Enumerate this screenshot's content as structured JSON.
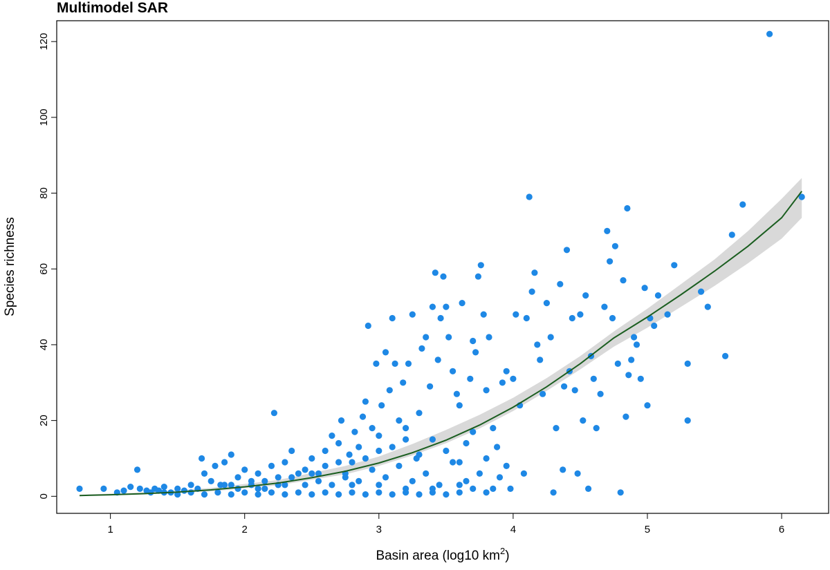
{
  "chart_data": {
    "type": "scatter",
    "title": "Multimodel SAR",
    "xlabel": {
      "text": "Basin area (log10 km",
      "sup": "2",
      "suffix": ")"
    },
    "ylabel": "Species richness",
    "xlim": [
      0.6,
      6.35
    ],
    "ylim": [
      -4.5,
      125.5
    ],
    "x_ticks": [
      1,
      2,
      3,
      4,
      5,
      6
    ],
    "y_ticks": [
      0,
      20,
      40,
      60,
      80,
      100,
      120
    ],
    "grid": false,
    "legend": "none",
    "colors": {
      "points": "#1E88E5",
      "fit_line": "#1B5E20",
      "ci_band": "#D9D9D9",
      "axes": "#000000"
    },
    "points": [
      [
        0.77,
        2
      ],
      [
        0.95,
        2
      ],
      [
        1.05,
        1
      ],
      [
        1.1,
        1.5
      ],
      [
        1.15,
        2.5
      ],
      [
        1.2,
        7
      ],
      [
        1.22,
        2
      ],
      [
        1.27,
        1.5
      ],
      [
        1.3,
        1
      ],
      [
        1.33,
        2
      ],
      [
        1.36,
        1.5
      ],
      [
        1.4,
        2.5
      ],
      [
        1.45,
        1
      ],
      [
        1.5,
        2
      ],
      [
        1.55,
        1.5
      ],
      [
        1.6,
        3
      ],
      [
        1.65,
        2
      ],
      [
        1.68,
        10
      ],
      [
        1.7,
        6
      ],
      [
        1.75,
        4
      ],
      [
        1.78,
        8
      ],
      [
        1.82,
        3
      ],
      [
        1.85,
        9
      ],
      [
        1.9,
        11
      ],
      [
        1.95,
        5
      ],
      [
        2.0,
        7
      ],
      [
        2.05,
        3
      ],
      [
        2.1,
        6
      ],
      [
        2.15,
        4
      ],
      [
        2.2,
        8
      ],
      [
        2.22,
        22
      ],
      [
        2.25,
        5
      ],
      [
        2.3,
        9
      ],
      [
        2.35,
        12
      ],
      [
        2.4,
        6
      ],
      [
        2.45,
        7
      ],
      [
        2.5,
        10
      ],
      [
        2.55,
        4
      ],
      [
        2.6,
        8
      ],
      [
        2.65,
        16
      ],
      [
        2.7,
        14
      ],
      [
        2.72,
        20
      ],
      [
        2.75,
        6
      ],
      [
        2.78,
        11
      ],
      [
        2.8,
        9
      ],
      [
        2.82,
        17
      ],
      [
        2.85,
        13
      ],
      [
        2.88,
        21
      ],
      [
        2.9,
        25
      ],
      [
        2.92,
        45
      ],
      [
        2.95,
        18
      ],
      [
        2.98,
        35
      ],
      [
        3.0,
        12
      ],
      [
        3.02,
        24
      ],
      [
        3.05,
        38
      ],
      [
        3.08,
        28
      ],
      [
        3.1,
        47
      ],
      [
        3.12,
        35
      ],
      [
        3.15,
        20
      ],
      [
        3.18,
        30
      ],
      [
        3.2,
        15
      ],
      [
        3.22,
        35
      ],
      [
        3.25,
        48
      ],
      [
        3.28,
        10
      ],
      [
        3.3,
        22
      ],
      [
        3.32,
        39
      ],
      [
        3.35,
        42
      ],
      [
        3.38,
        29
      ],
      [
        3.4,
        50
      ],
      [
        3.42,
        59
      ],
      [
        3.44,
        36
      ],
      [
        3.46,
        47
      ],
      [
        3.48,
        58
      ],
      [
        3.5,
        50
      ],
      [
        3.52,
        42
      ],
      [
        3.55,
        33
      ],
      [
        3.58,
        27
      ],
      [
        3.6,
        24
      ],
      [
        3.62,
        51
      ],
      [
        3.65,
        14
      ],
      [
        3.68,
        31
      ],
      [
        3.7,
        41
      ],
      [
        3.72,
        38
      ],
      [
        3.74,
        58
      ],
      [
        3.76,
        61
      ],
      [
        3.78,
        48
      ],
      [
        3.8,
        28
      ],
      [
        3.82,
        42
      ],
      [
        3.85,
        18
      ],
      [
        3.88,
        13
      ],
      [
        3.9,
        5
      ],
      [
        3.92,
        30
      ],
      [
        3.95,
        33
      ],
      [
        3.98,
        2
      ],
      [
        4.0,
        31
      ],
      [
        4.02,
        48
      ],
      [
        4.05,
        24
      ],
      [
        4.08,
        6
      ],
      [
        4.1,
        47
      ],
      [
        4.12,
        79
      ],
      [
        4.14,
        54
      ],
      [
        4.16,
        59
      ],
      [
        4.18,
        40
      ],
      [
        4.2,
        36
      ],
      [
        4.22,
        27
      ],
      [
        4.25,
        51
      ],
      [
        4.28,
        42
      ],
      [
        4.3,
        1
      ],
      [
        4.32,
        18
      ],
      [
        4.35,
        56
      ],
      [
        4.37,
        7
      ],
      [
        4.38,
        29
      ],
      [
        4.4,
        65
      ],
      [
        4.42,
        33
      ],
      [
        4.44,
        47
      ],
      [
        4.46,
        28
      ],
      [
        4.48,
        6
      ],
      [
        4.5,
        48
      ],
      [
        4.52,
        20
      ],
      [
        4.54,
        53
      ],
      [
        4.56,
        2
      ],
      [
        4.58,
        37
      ],
      [
        4.6,
        31
      ],
      [
        4.62,
        18
      ],
      [
        4.65,
        27
      ],
      [
        4.68,
        50
      ],
      [
        4.7,
        70
      ],
      [
        4.72,
        62
      ],
      [
        4.74,
        47
      ],
      [
        4.76,
        66
      ],
      [
        4.78,
        35
      ],
      [
        4.8,
        1
      ],
      [
        4.82,
        57
      ],
      [
        4.84,
        21
      ],
      [
        4.85,
        76
      ],
      [
        4.86,
        32
      ],
      [
        4.88,
        36
      ],
      [
        4.9,
        42
      ],
      [
        4.92,
        40
      ],
      [
        4.95,
        31
      ],
      [
        4.98,
        55
      ],
      [
        5.0,
        24
      ],
      [
        5.02,
        47
      ],
      [
        5.05,
        45
      ],
      [
        5.08,
        53
      ],
      [
        5.15,
        48
      ],
      [
        5.2,
        61
      ],
      [
        5.3,
        35
      ],
      [
        5.3,
        20
      ],
      [
        5.4,
        54
      ],
      [
        5.45,
        50
      ],
      [
        5.58,
        37
      ],
      [
        5.63,
        69
      ],
      [
        5.71,
        77
      ],
      [
        5.91,
        122
      ],
      [
        6.15,
        79
      ],
      [
        1.4,
        1
      ],
      [
        1.5,
        0.5
      ],
      [
        1.6,
        1
      ],
      [
        1.7,
        0.5
      ],
      [
        1.8,
        1
      ],
      [
        1.9,
        0.5
      ],
      [
        2.0,
        1
      ],
      [
        2.1,
        0.5
      ],
      [
        2.2,
        1
      ],
      [
        2.3,
        0.5
      ],
      [
        2.4,
        1
      ],
      [
        2.5,
        0.5
      ],
      [
        2.6,
        1
      ],
      [
        2.7,
        0.5
      ],
      [
        2.8,
        1
      ],
      [
        2.9,
        0.5
      ],
      [
        3.0,
        1
      ],
      [
        3.1,
        0.5
      ],
      [
        3.2,
        1
      ],
      [
        3.3,
        0.5
      ],
      [
        3.4,
        1
      ],
      [
        3.5,
        0.5
      ],
      [
        3.6,
        1
      ],
      [
        3.7,
        2
      ],
      [
        3.8,
        1
      ],
      [
        1.85,
        3
      ],
      [
        1.95,
        2
      ],
      [
        2.05,
        4
      ],
      [
        2.15,
        2
      ],
      [
        2.25,
        3
      ],
      [
        2.35,
        5
      ],
      [
        2.45,
        3
      ],
      [
        2.55,
        6
      ],
      [
        2.65,
        3
      ],
      [
        2.75,
        5
      ],
      [
        2.85,
        4
      ],
      [
        2.95,
        7
      ],
      [
        3.05,
        5
      ],
      [
        3.15,
        8
      ],
      [
        3.25,
        4
      ],
      [
        3.35,
        6
      ],
      [
        3.45,
        3
      ],
      [
        3.55,
        9
      ],
      [
        3.65,
        4
      ],
      [
        3.75,
        6
      ],
      [
        3.85,
        2
      ],
      [
        3.95,
        8
      ],
      [
        2.9,
        10
      ],
      [
        3.0,
        16
      ],
      [
        3.1,
        13
      ],
      [
        3.2,
        18
      ],
      [
        3.3,
        11
      ],
      [
        3.4,
        15
      ],
      [
        3.5,
        12
      ],
      [
        3.6,
        9
      ],
      [
        3.7,
        17
      ],
      [
        3.8,
        10
      ],
      [
        2.8,
        3
      ],
      [
        3.0,
        3
      ],
      [
        3.2,
        2
      ],
      [
        3.4,
        2
      ],
      [
        3.6,
        3
      ],
      [
        2.6,
        12
      ],
      [
        2.7,
        9
      ],
      [
        2.5,
        6
      ],
      [
        2.3,
        3
      ],
      [
        2.1,
        2
      ],
      [
        1.9,
        3
      ]
    ],
    "fit_line": [
      [
        0.77,
        0.2
      ],
      [
        1.0,
        0.4
      ],
      [
        1.25,
        0.7
      ],
      [
        1.5,
        1.1
      ],
      [
        1.75,
        1.7
      ],
      [
        2.0,
        2.5
      ],
      [
        2.25,
        3.5
      ],
      [
        2.5,
        4.9
      ],
      [
        2.75,
        6.6
      ],
      [
        3.0,
        8.8
      ],
      [
        3.25,
        11.5
      ],
      [
        3.5,
        14.8
      ],
      [
        3.75,
        18.8
      ],
      [
        4.0,
        23.5
      ],
      [
        4.25,
        28.9
      ],
      [
        4.5,
        35.0
      ],
      [
        4.75,
        41.8
      ],
      [
        5.0,
        47.3
      ],
      [
        5.25,
        53.2
      ],
      [
        5.5,
        59.4
      ],
      [
        5.75,
        66.0
      ],
      [
        6.0,
        73.5
      ],
      [
        6.15,
        80.5
      ]
    ],
    "ci_band": [
      [
        0.77,
        0.1,
        0.4
      ],
      [
        1.25,
        0.5,
        1.0
      ],
      [
        1.75,
        1.3,
        2.2
      ],
      [
        2.25,
        2.9,
        4.3
      ],
      [
        2.75,
        5.8,
        8.0
      ],
      [
        3.0,
        8.0,
        10.5
      ],
      [
        3.25,
        10.8,
        13.8
      ],
      [
        3.5,
        14.0,
        17.5
      ],
      [
        3.75,
        17.9,
        21.5
      ],
      [
        4.0,
        22.5,
        26.0
      ],
      [
        4.25,
        27.8,
        31.2
      ],
      [
        4.5,
        33.5,
        37.0
      ],
      [
        4.75,
        39.5,
        43.5
      ],
      [
        5.0,
        44.5,
        49.5
      ],
      [
        5.25,
        50.0,
        56.0
      ],
      [
        5.5,
        55.5,
        62.5
      ],
      [
        5.75,
        61.5,
        70.0
      ],
      [
        6.0,
        68.0,
        78.5
      ],
      [
        6.15,
        73.5,
        84.0
      ]
    ]
  }
}
